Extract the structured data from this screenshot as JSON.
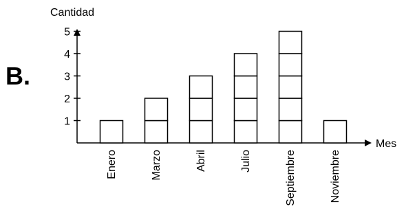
{
  "option_label": "B.",
  "chart_data": {
    "type": "bar",
    "style": "stacked unit squares",
    "categories": [
      "Enero",
      "Marzo",
      "Abril",
      "Julio",
      "Septiembre",
      "Noviembre"
    ],
    "values": [
      1,
      2,
      3,
      4,
      5,
      1
    ],
    "title": "",
    "xlabel": "Mes",
    "ylabel": "Cantidad",
    "yticks": [
      "1",
      "2",
      "3",
      "4",
      "5"
    ],
    "ylim": [
      0,
      5
    ],
    "grid": false,
    "legend": "none",
    "bar_fill": "#ffffff",
    "stroke_color": "#000000"
  }
}
